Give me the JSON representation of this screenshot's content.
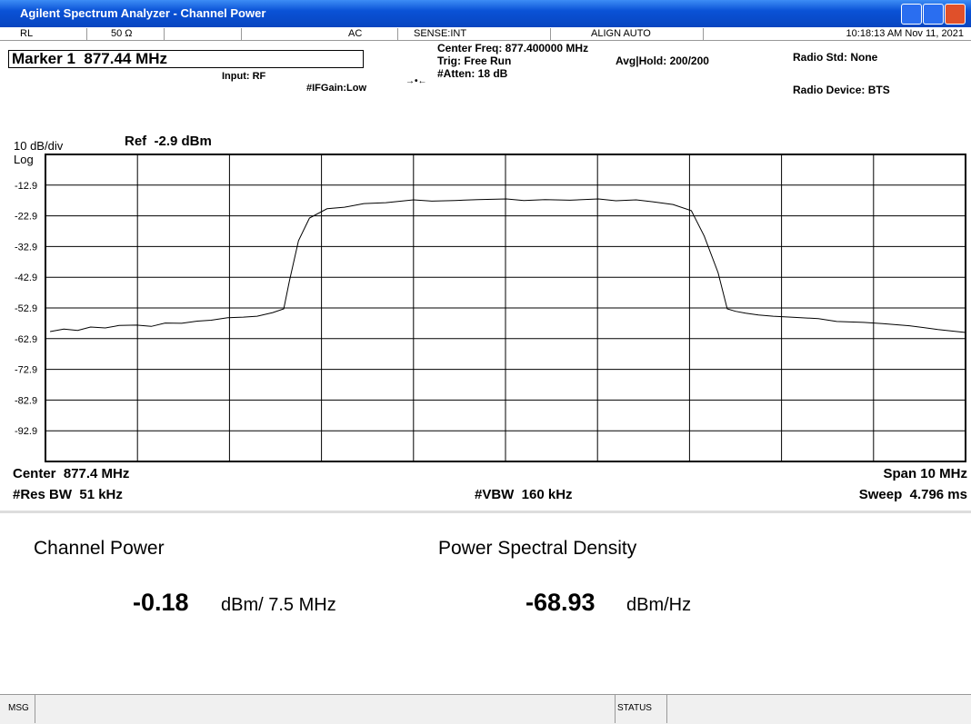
{
  "window": {
    "title": "Agilent Spectrum Analyzer - Channel Power"
  },
  "status_bar": {
    "mode": "RL",
    "impedance": "50 Ω",
    "coupling": "AC",
    "sense": "SENSE:INT",
    "align": "ALIGN AUTO",
    "datetime": "10:18:13 AM Nov 11, 2021"
  },
  "header": {
    "marker": "Marker 1  877.44 MHz",
    "input": "Input: RF",
    "ifgain": "#IFGain:Low",
    "center_freq": "Center Freq: 877.400000 MHz",
    "trig": "Trig: Free Run",
    "atten": "#Atten: 18 dB",
    "avg_hold": "Avg|Hold: 200/200",
    "radio_std": "Radio Std: None",
    "radio_device": "Radio Device: BTS",
    "scale": "10 dB/div",
    "ref": "Ref  -2.9 dBm",
    "log": "Log"
  },
  "chart_data": {
    "type": "line",
    "color": "#000000",
    "grid": true,
    "x": [
      872.45,
      872.6,
      872.75,
      872.89,
      873.05,
      873.2,
      873.39,
      873.55,
      873.7,
      873.88,
      874.05,
      874.2,
      874.38,
      874.55,
      874.7,
      874.87,
      874.99,
      875.05,
      875.15,
      875.27,
      875.46,
      875.65,
      875.86,
      876.1,
      876.4,
      876.6,
      876.85,
      877.1,
      877.41,
      877.6,
      877.83,
      878.1,
      878.41,
      878.6,
      878.82,
      879.0,
      879.22,
      879.42,
      879.56,
      879.71,
      879.81,
      879.9,
      880.01,
      880.15,
      880.31,
      880.5,
      880.8,
      881.0,
      881.29,
      881.5,
      881.79,
      882.1,
      882.4
    ],
    "values": [
      -60.6,
      -59.8,
      -60.2,
      -59.1,
      -59.4,
      -58.6,
      -58.5,
      -58.9,
      -57.8,
      -57.9,
      -57.2,
      -56.9,
      -56.1,
      -55.9,
      -55.6,
      -54.4,
      -53.2,
      -44.3,
      -31.0,
      -23.6,
      -20.6,
      -20.1,
      -18.9,
      -18.6,
      -17.7,
      -18.1,
      -17.9,
      -17.6,
      -17.4,
      -17.9,
      -17.6,
      -17.8,
      -17.4,
      -18.0,
      -17.7,
      -18.3,
      -19.2,
      -21.2,
      -29.5,
      -41.4,
      -53.2,
      -54.0,
      -54.6,
      -55.2,
      -55.6,
      -55.9,
      -56.4,
      -57.3,
      -57.6,
      -58.0,
      -58.7,
      -59.9,
      -60.9
    ],
    "xlim": [
      872.4,
      882.4
    ],
    "ylim": [
      -102.9,
      -2.9
    ],
    "yticks": [
      -12.9,
      -22.9,
      -32.9,
      -42.9,
      -52.9,
      -62.9,
      -72.9,
      -82.9,
      -92.9
    ]
  },
  "footer_info": {
    "center": "Center  877.4 MHz",
    "span": "Span 10 MHz",
    "res_bw": "#Res BW  51 kHz",
    "vbw": "#VBW  160 kHz",
    "sweep": "Sweep  4.796 ms"
  },
  "results": {
    "channel_power_label": "Channel Power",
    "channel_power_value": "-0.18",
    "channel_power_unit": "dBm/ 7.5 MHz",
    "psd_label": "Power Spectral Density",
    "psd_value": "-68.93",
    "psd_unit": "dBm/Hz"
  },
  "message_bar": {
    "msg": "MSG",
    "status": "STATUS"
  }
}
